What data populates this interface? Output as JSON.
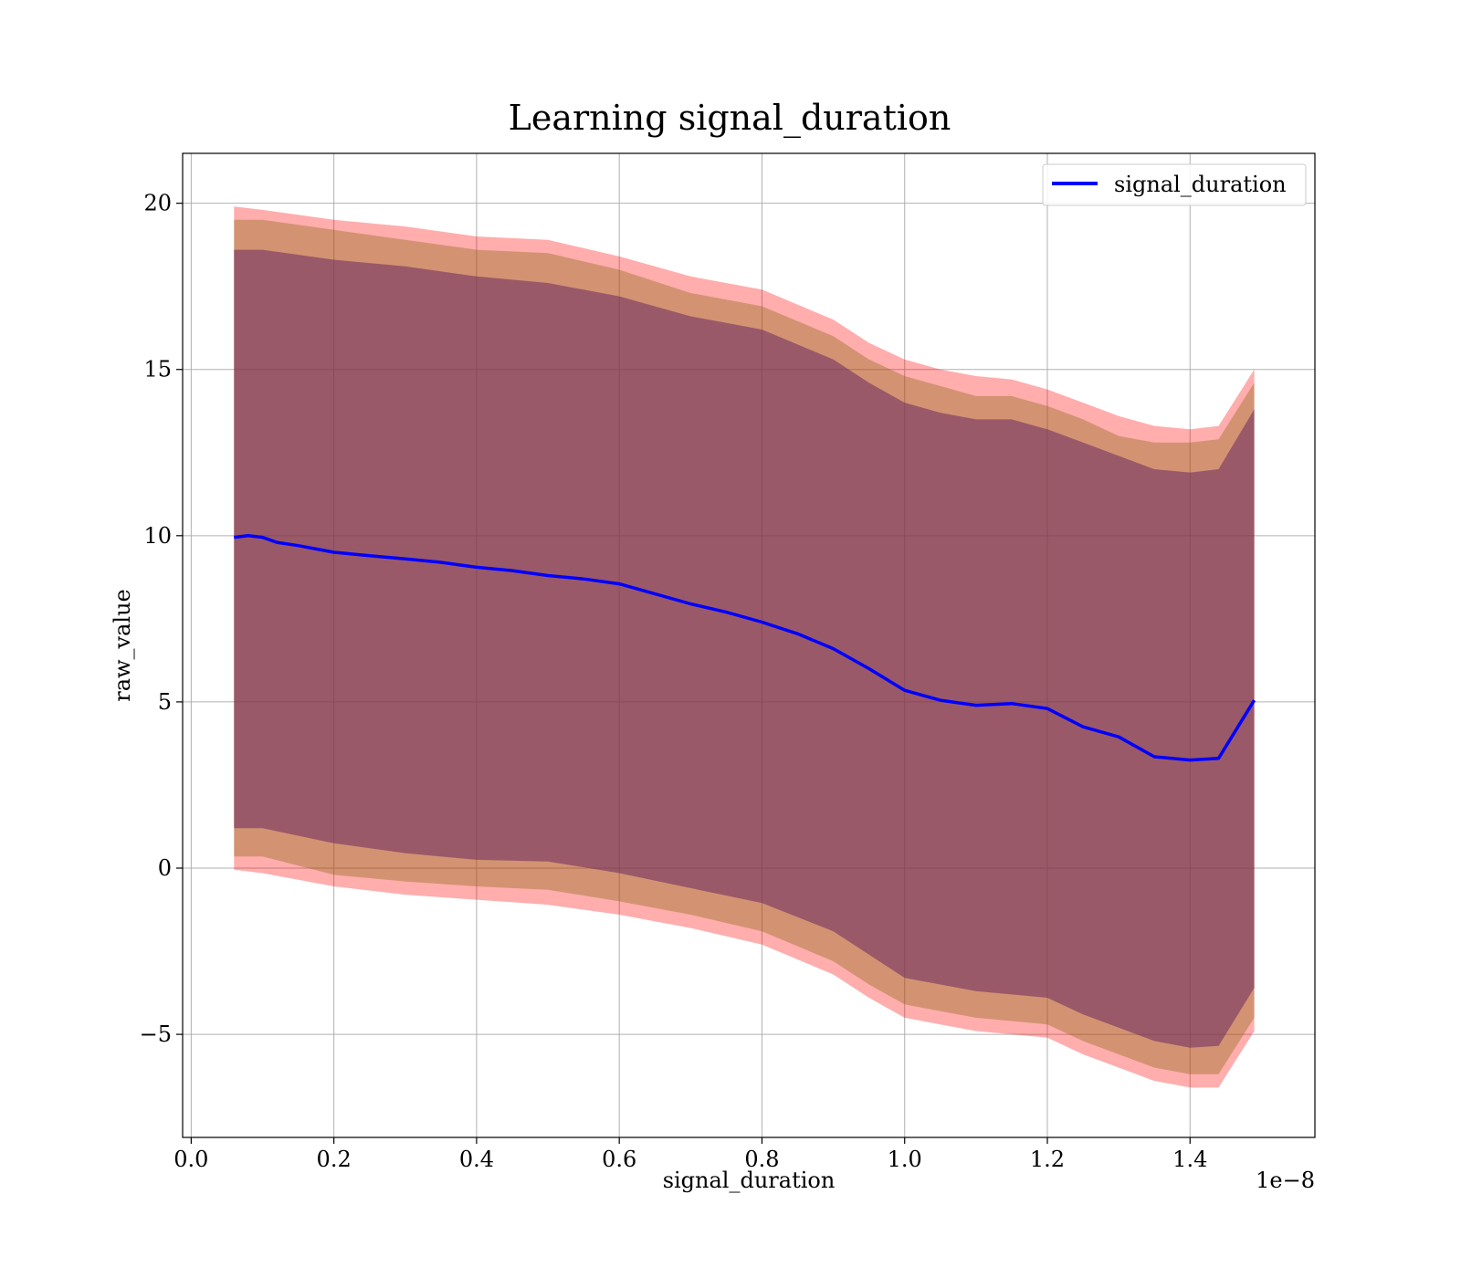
{
  "chart_data": {
    "type": "line",
    "title": "Learning signal_duration",
    "xlabel": "signal_duration",
    "ylabel": "raw_value",
    "x_offset_label": "1e−8",
    "xlim": [
      -0.012,
      1.575
    ],
    "ylim": [
      -8.1,
      21.5
    ],
    "x_ticks": [
      0.0,
      0.2,
      0.4,
      0.6,
      0.8,
      1.0,
      1.2,
      1.4
    ],
    "x_tick_labels": [
      "0.0",
      "0.2",
      "0.4",
      "0.6",
      "0.8",
      "1.0",
      "1.2",
      "1.4"
    ],
    "y_ticks": [
      -5,
      0,
      5,
      10,
      15,
      20
    ],
    "y_tick_labels": [
      "−5",
      "0",
      "5",
      "10",
      "15",
      "20"
    ],
    "grid": true,
    "legend": {
      "position": "top-right",
      "entries": [
        "signal_duration"
      ]
    },
    "colors": {
      "line": "#0000ff",
      "band_outer": "#ff0000",
      "band_middle": "#8b6914",
      "band_inner": "#6b2a5e",
      "grid": "#b0b0b0"
    },
    "series": [
      {
        "name": "signal_duration",
        "x": [
          0.06,
          0.08,
          0.1,
          0.12,
          0.15,
          0.2,
          0.25,
          0.3,
          0.35,
          0.4,
          0.45,
          0.5,
          0.55,
          0.6,
          0.65,
          0.7,
          0.75,
          0.8,
          0.85,
          0.9,
          0.95,
          1.0,
          1.05,
          1.1,
          1.15,
          1.2,
          1.25,
          1.3,
          1.35,
          1.4,
          1.44,
          1.49
        ],
        "y": [
          9.95,
          10.0,
          9.95,
          9.8,
          9.7,
          9.5,
          9.4,
          9.3,
          9.2,
          9.05,
          8.95,
          8.8,
          8.7,
          8.55,
          8.25,
          7.95,
          7.7,
          7.4,
          7.05,
          6.6,
          6.0,
          5.35,
          5.05,
          4.9,
          4.95,
          4.8,
          4.25,
          3.95,
          3.35,
          3.25,
          3.3,
          5.05
        ]
      }
    ],
    "bands": [
      {
        "level": "outer",
        "x": [
          0.06,
          0.1,
          0.2,
          0.3,
          0.4,
          0.5,
          0.6,
          0.7,
          0.8,
          0.9,
          0.95,
          1.0,
          1.05,
          1.1,
          1.15,
          1.2,
          1.25,
          1.3,
          1.35,
          1.4,
          1.44,
          1.49
        ],
        "upper": [
          19.9,
          19.8,
          19.5,
          19.3,
          19.0,
          18.9,
          18.4,
          17.8,
          17.4,
          16.5,
          15.8,
          15.3,
          15.0,
          14.8,
          14.7,
          14.4,
          14.0,
          13.6,
          13.3,
          13.2,
          13.3,
          15.0
        ],
        "lower": [
          -0.05,
          -0.15,
          -0.55,
          -0.8,
          -0.95,
          -1.1,
          -1.4,
          -1.8,
          -2.3,
          -3.2,
          -3.9,
          -4.5,
          -4.7,
          -4.9,
          -5.0,
          -5.1,
          -5.6,
          -6.0,
          -6.4,
          -6.6,
          -6.6,
          -4.9
        ]
      },
      {
        "level": "middle",
        "x": [
          0.06,
          0.1,
          0.2,
          0.3,
          0.4,
          0.5,
          0.6,
          0.7,
          0.8,
          0.9,
          0.95,
          1.0,
          1.05,
          1.1,
          1.15,
          1.2,
          1.25,
          1.3,
          1.35,
          1.4,
          1.44,
          1.49
        ],
        "upper": [
          19.5,
          19.5,
          19.2,
          18.9,
          18.6,
          18.5,
          18.0,
          17.3,
          16.9,
          16.0,
          15.3,
          14.8,
          14.5,
          14.2,
          14.2,
          13.9,
          13.5,
          13.0,
          12.8,
          12.8,
          12.9,
          14.6
        ],
        "lower": [
          0.35,
          0.35,
          -0.2,
          -0.4,
          -0.55,
          -0.65,
          -1.0,
          -1.4,
          -1.9,
          -2.8,
          -3.5,
          -4.1,
          -4.3,
          -4.5,
          -4.6,
          -4.7,
          -5.2,
          -5.6,
          -6.0,
          -6.2,
          -6.2,
          -4.5
        ]
      },
      {
        "level": "inner",
        "x": [
          0.06,
          0.1,
          0.2,
          0.3,
          0.4,
          0.5,
          0.6,
          0.7,
          0.8,
          0.9,
          0.95,
          1.0,
          1.05,
          1.1,
          1.15,
          1.2,
          1.25,
          1.3,
          1.35,
          1.4,
          1.44,
          1.49
        ],
        "upper": [
          18.6,
          18.6,
          18.3,
          18.1,
          17.8,
          17.6,
          17.2,
          16.6,
          16.2,
          15.3,
          14.6,
          14.0,
          13.7,
          13.5,
          13.5,
          13.2,
          12.8,
          12.4,
          12.0,
          11.9,
          12.0,
          13.8
        ],
        "lower": [
          1.2,
          1.2,
          0.75,
          0.45,
          0.25,
          0.2,
          -0.15,
          -0.6,
          -1.05,
          -1.9,
          -2.6,
          -3.3,
          -3.5,
          -3.7,
          -3.8,
          -3.9,
          -4.4,
          -4.8,
          -5.2,
          -5.4,
          -5.35,
          -3.6
        ]
      }
    ]
  }
}
